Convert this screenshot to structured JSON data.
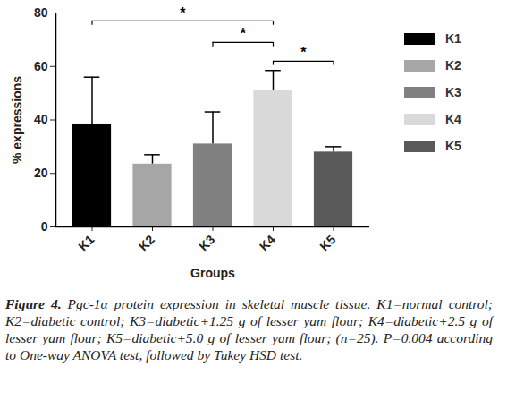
{
  "chart_data": {
    "type": "bar",
    "categories": [
      "K1",
      "K2",
      "K3",
      "K4",
      "K5"
    ],
    "values": [
      38.5,
      23.5,
      31,
      51,
      28
    ],
    "error": [
      17.5,
      3.5,
      12,
      7.5,
      2
    ],
    "colors": [
      "#000000",
      "#a6a6a6",
      "#808080",
      "#d9d9d9",
      "#595959"
    ],
    "x_label": "Groups",
    "y_label": "% expressions",
    "ylim": [
      0,
      80
    ],
    "yticks": [
      0,
      20,
      40,
      60,
      80
    ],
    "grid": false,
    "legend": "top-right",
    "significance": [
      {
        "from": "K1",
        "to": "K4",
        "y": 77,
        "label": "*"
      },
      {
        "from": "K3",
        "to": "K4",
        "y": 69,
        "label": "*"
      },
      {
        "from": "K4",
        "to": "K5",
        "y": 62,
        "label": "*"
      }
    ],
    "caption_label": "Figure 4.",
    "caption": "Pgc-1α protein expression in skeletal muscle tissue. K1=normal control; K2=diabetic control; K3=diabetic+1.25 g of lesser yam flour; K4=diabetic+2.5 g of lesser yam flour; K5=diabetic+5.0 g of lesser yam flour; (n=25). P=0.004 according to One-way ANOVA test, followed by Tukey HSD test."
  }
}
